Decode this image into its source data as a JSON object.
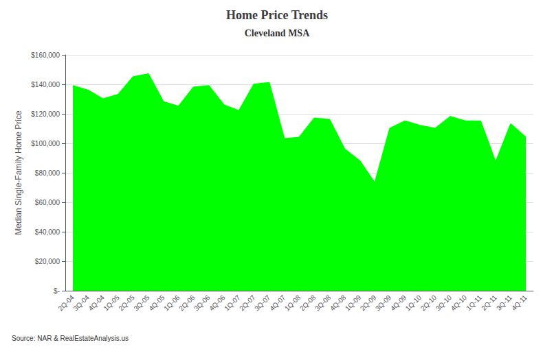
{
  "chart_data": {
    "type": "area",
    "title": "Home Price Trends",
    "subtitle": "Cleveland MSA",
    "source": "Source: NAR & RealEstateAnalysis.us",
    "ylabel": "Median Single-Family Home Price",
    "categories": [
      "2Q-04",
      "3Q-04",
      "4Q-04",
      "1Q-05",
      "2Q-05",
      "3Q-05",
      "4Q-05",
      "1Q-06",
      "2Q-06",
      "3Q-06",
      "4Q-06",
      "1Q-07",
      "2Q-07",
      "3Q-07",
      "4Q-07",
      "1Q-08",
      "2Q-08",
      "3Q-08",
      "4Q-08",
      "1Q-09",
      "2Q-09",
      "3Q-09",
      "4Q-09",
      "1Q-10",
      "2Q-10",
      "3Q-10",
      "4Q-10",
      "1Q-11",
      "2Q-11",
      "3Q-11",
      "4Q-11"
    ],
    "values": [
      139000,
      136000,
      130000,
      133000,
      145000,
      147000,
      128000,
      125000,
      138000,
      139000,
      126000,
      122000,
      140000,
      141000,
      103000,
      104000,
      117000,
      116000,
      96000,
      88000,
      73000,
      110000,
      115000,
      112000,
      110000,
      118000,
      115000,
      115000,
      87000,
      113000,
      104000
    ],
    "color": "#00FF00",
    "ylim": [
      0,
      160000
    ],
    "yticks": [
      {
        "value": 0,
        "label": "$-"
      },
      {
        "value": 20000,
        "label": "$20,000"
      },
      {
        "value": 40000,
        "label": "$40,000"
      },
      {
        "value": 60000,
        "label": "$60,000"
      },
      {
        "value": 80000,
        "label": "$80,000"
      },
      {
        "value": 100000,
        "label": "$100,000"
      },
      {
        "value": 120000,
        "label": "$120,000"
      },
      {
        "value": 140000,
        "label": "$140,000"
      },
      {
        "value": 160000,
        "label": "$160,000"
      }
    ],
    "grid": true
  }
}
